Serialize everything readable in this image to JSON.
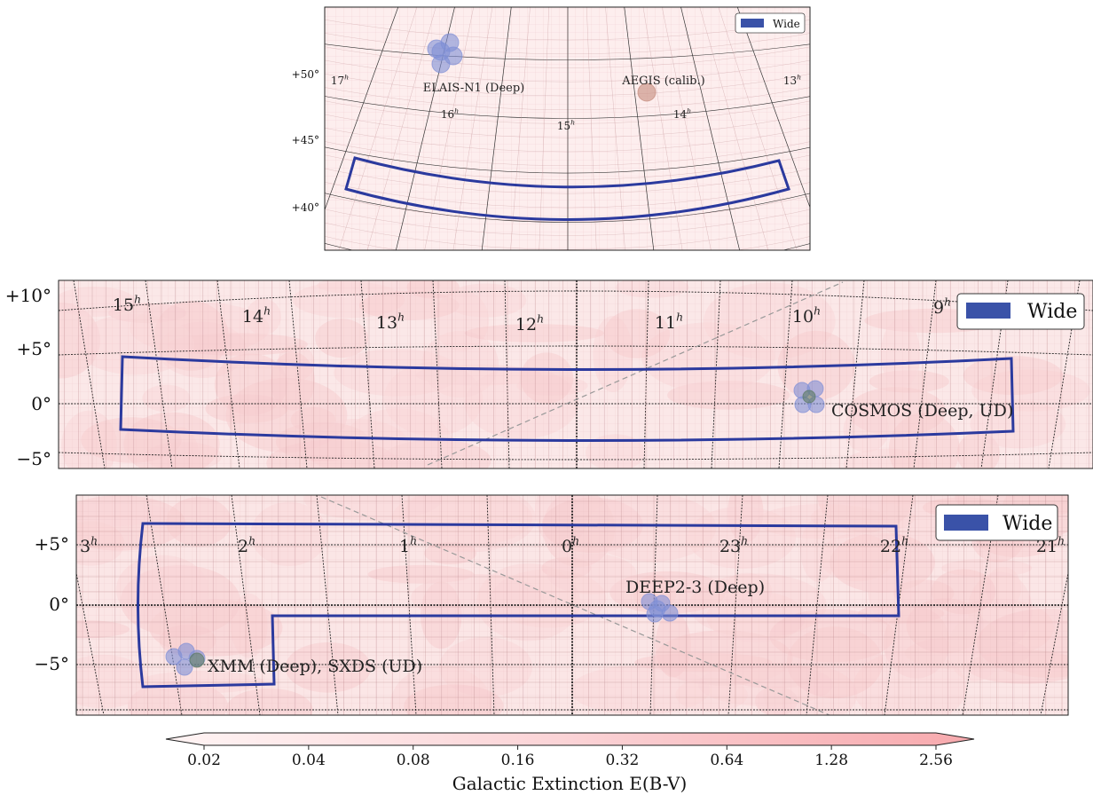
{
  "chart_data": [
    {
      "type": "map",
      "panel": "top",
      "legend": {
        "label": "Wide",
        "placement": "top-right"
      },
      "dec_ticks": [
        "+50°",
        "+45°",
        "+40°"
      ],
      "ra_labels": [
        {
          "text": "17",
          "sup": "h"
        },
        {
          "text": "16",
          "sup": "h"
        },
        {
          "text": "15",
          "sup": "h"
        },
        {
          "text": "14",
          "sup": "h"
        },
        {
          "text": "13",
          "sup": "h"
        }
      ],
      "fields": [
        {
          "name": "ELAIS-N1 (Deep)",
          "color": "#7f8fd6"
        },
        {
          "name": "AEGIS (calib.)",
          "color": "#c48a7c"
        }
      ],
      "survey_color": "#2b3a9e"
    },
    {
      "type": "map",
      "panel": "middle",
      "legend": {
        "label": "Wide",
        "placement": "top-right"
      },
      "dec_ticks": [
        "+10°",
        "+5°",
        "0°",
        "−5°"
      ],
      "ra_labels": [
        {
          "text": "15",
          "sup": "h"
        },
        {
          "text": "14",
          "sup": "h"
        },
        {
          "text": "13",
          "sup": "h"
        },
        {
          "text": "12",
          "sup": "h"
        },
        {
          "text": "11",
          "sup": "h"
        },
        {
          "text": "10",
          "sup": "h"
        },
        {
          "text": "9",
          "sup": "h"
        }
      ],
      "fields": [
        {
          "name": "COSMOS (Deep, UD)",
          "color": "#7f8fd6"
        }
      ],
      "survey_color": "#2b3a9e"
    },
    {
      "type": "map",
      "panel": "bottom",
      "legend": {
        "label": "Wide",
        "placement": "top-right"
      },
      "dec_ticks": [
        "+5°",
        "0°",
        "−5°"
      ],
      "ra_labels": [
        {
          "text": "3",
          "sup": "h"
        },
        {
          "text": "2",
          "sup": "h"
        },
        {
          "text": "1",
          "sup": "h"
        },
        {
          "text": "0",
          "sup": "h"
        },
        {
          "text": "23",
          "sup": "h"
        },
        {
          "text": "22",
          "sup": "h"
        },
        {
          "text": "21",
          "sup": "h"
        }
      ],
      "fields": [
        {
          "name": "DEEP2-3 (Deep)",
          "color": "#7f8fd6"
        },
        {
          "name": "XMM (Deep), SXDS (UD)",
          "color": "#7f8fd6"
        }
      ],
      "survey_color": "#2b3a9e"
    }
  ],
  "colorbar": {
    "ticks": [
      "0.02",
      "0.04",
      "0.08",
      "0.16",
      "0.32",
      "0.64",
      "1.28",
      "2.56"
    ],
    "label": "Galactic Extinction E(B-V)",
    "scale": "log",
    "colors": [
      "#fff4f4",
      "#f7a9ad"
    ]
  }
}
